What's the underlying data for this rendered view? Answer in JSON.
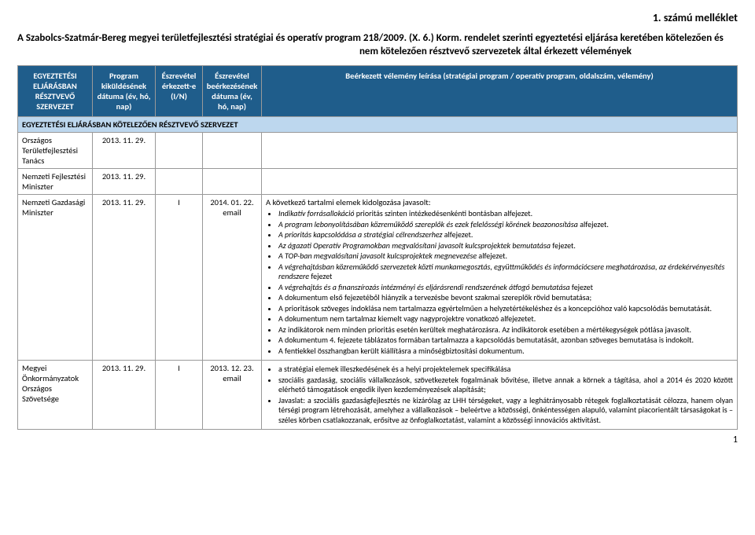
{
  "header_right": "1. számú melléklet",
  "title": "A Szabolcs-Szatmár-Bereg megyei területfejlesztési stratégiai és operatív program 218/2009. (X. 6.) Korm. rendelet szerinti egyeztetési eljárása keretében kötelezően és",
  "subtitle": "nem kötelezően résztvevő szervezetek által érkezett vélemények",
  "columns": {
    "c1": "EGYEZTETÉSI ELJÁRÁSBAN RÉSZTVEVŐ SZERVEZET",
    "c2": "Program kiküldésének dátuma (év, hó, nap)",
    "c3": "Észrevétel érkezett-e (I/N)",
    "c4": "Észrevétel beérkezésének dátuma (év, hó, nap)",
    "c5": "Beérkezett vélemény leírása (stratégiai program / operatív program, oldalszám, vélemény)"
  },
  "section": "EGYEZTETÉSI ELJÁRÁSBAN KÖTELEZŐEN RÉSZTVEVŐ SZERVEZET",
  "rows": [
    {
      "org": "Országos Területfejlesztési Tanács",
      "sent": "2013. 11. 29.",
      "received": "",
      "date": "",
      "opinion_lead": "",
      "bullets": []
    },
    {
      "org": "Nemzeti Fejlesztési Miniszter",
      "sent": "2013. 11. 29.",
      "received": "",
      "date": "",
      "opinion_lead": "",
      "bullets": []
    },
    {
      "org": "Nemzeti Gazdasági Miniszter",
      "sent": "2013. 11. 29.",
      "received": "I",
      "date": "2014. 01. 22. email",
      "opinion_lead": "A következő tartalmi elemek kidolgozása javasolt:",
      "bullets": [
        "<i>Indikatív forrásallokáció</i> prioritás szinten intézkedésenkénti bontásban alfejezet.",
        "<i>A program lebonyolításában közreműködő szereplők és ezek felelősségi körének beazonosítása</i> alfejezet.",
        "<i>A prioritás kapcsolódása a stratégiai célrendszerhez</i> alfejezet.",
        "<i>Az ágazati Operatív Programokban megvalósítani javasolt kulcsprojektek bemutatása</i> fejezet.",
        "<i>A TOP-ban megvalósítani javasolt kulcsprojektek megnevezése</i> alfejezet.",
        "<i>A végrehajtásban közreműködő szervezetek közti munkamegosztás, együttműködés és információcsere meghatározása, az érdekérvényesítés rendszere</i> fejezet",
        "<i>A végrehajtás és a finanszírozás intézményi és eljárásrendi rendszerének átfogó bemutatása</i> fejezet",
        "A dokumentum első fejezetéből hiányzik a tervezésbe bevont szakmai szereplők rövid bemutatása;",
        "A prioritások szöveges indoklása nem tartalmazza egyértelműen a helyzetértékeléshez és a koncepcióhoz való kapcsolódás bemutatását.",
        "A dokumentum nem tartalmaz kiemelt vagy nagyprojektre vonatkozó alfejezetet.",
        "Az indikátorok nem minden prioritás esetén kerültek meghatározásra. Az indikátorok esetében a mértékegységek pótlása javasolt.",
        "A dokumentum 4. fejezete táblázatos formában tartalmazza a kapcsolódás bemutatását, azonban szöveges bemutatása is indokolt.",
        "A fentiekkel összhangban került kiállításra a minőségbiztosítási dokumentum."
      ]
    },
    {
      "org": "Megyei Önkormányzatok Országos Szövetsége",
      "sent": "2013. 11. 29.",
      "received": "I",
      "date": "2013. 12. 23. email",
      "opinion_lead": "",
      "bullets": [
        "a stratégiai elemek illeszkedésének és a helyi projektelemek specifikálása",
        "szociális gazdaság, szociális vállalkozások, szövetkezetek fogalmának bővítése, illetve annak a körnek a tágítása, ahol a 2014 és 2020 között elérhető támogatások engedik ilyen kezdeményezések alapítását;",
        "Javaslat: a szociális gazdaságfejlesztés ne kizárólag az LHH térségeket, vagy a leghátrányosabb rétegek foglalkoztatását célozza, hanem olyan térségi program létrehozását, amelyhez a vállalkozások – beleértve a közösségi, önkéntességen alapuló, valamint piacorientált társaságokat is – széles körben csatlakozzanak, erősítve az önfoglalkoztatást, valamint a közösségi innovációs aktivitást."
      ],
      "justify": true
    }
  ],
  "page_number": "1"
}
